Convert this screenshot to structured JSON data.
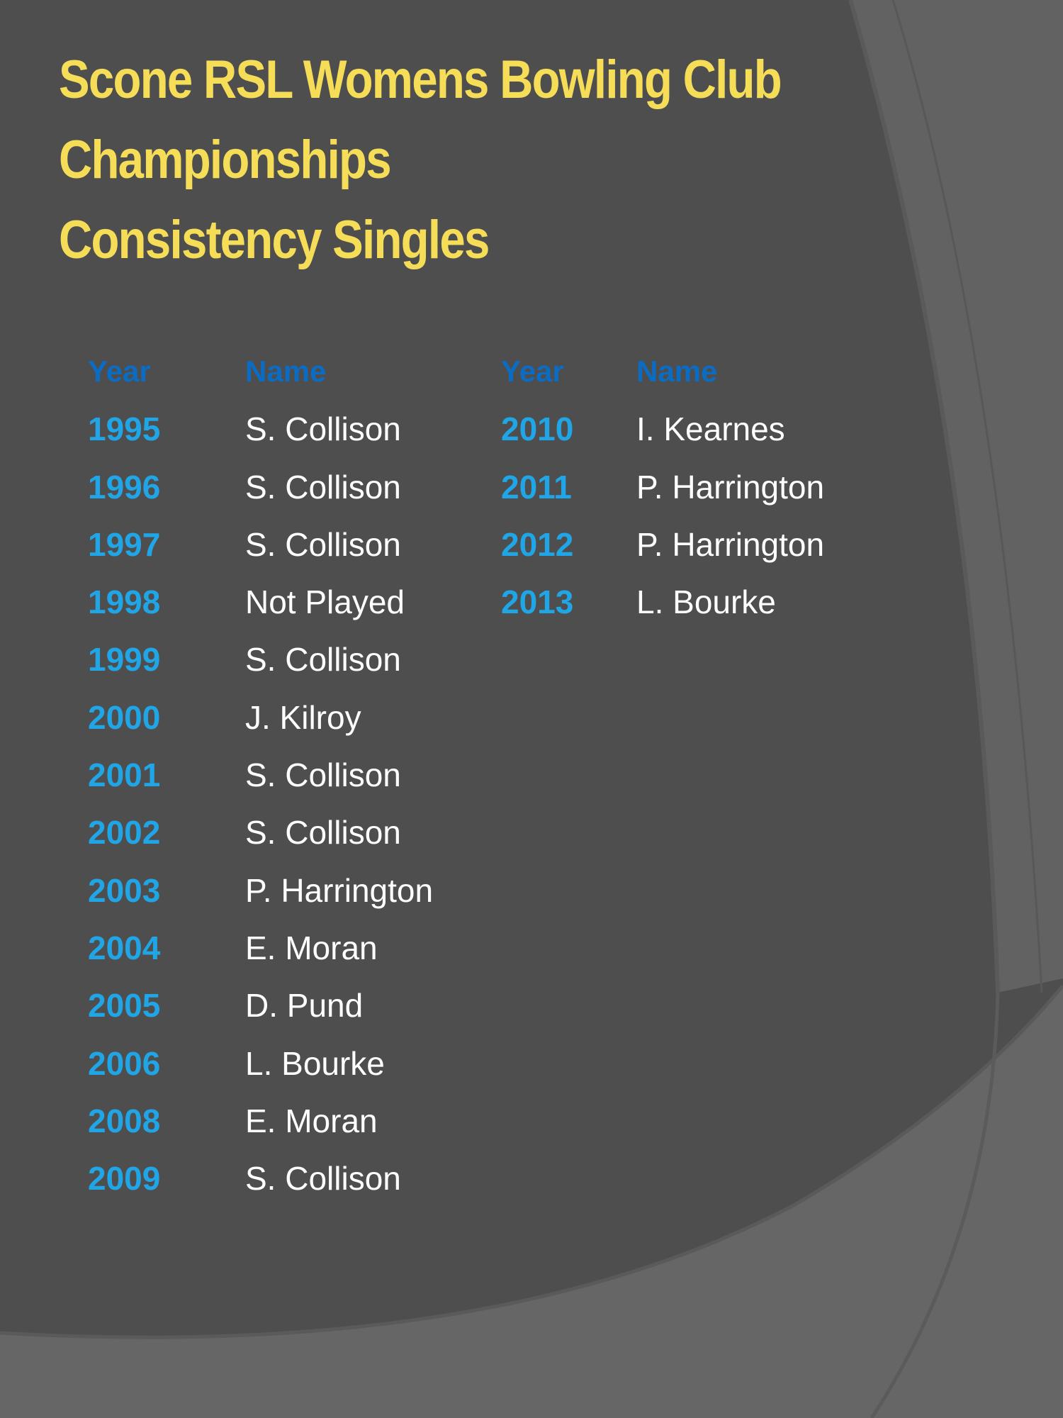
{
  "title": {
    "line1": "Scone RSL Womens Bowling Club",
    "line2": "Championships",
    "line3": "Consistency Singles"
  },
  "colors": {
    "background": "#4e4e4e",
    "title": "#f5dd58",
    "header": "#0b6cc4",
    "year": "#20a6e6",
    "name": "#ffffff"
  },
  "table": {
    "headers": {
      "year": "Year",
      "name": "Name"
    },
    "left_rows": [
      {
        "year": "1995",
        "name": "S. Collison"
      },
      {
        "year": "1996",
        "name": "S. Collison"
      },
      {
        "year": "1997",
        "name": "S. Collison"
      },
      {
        "year": "1998",
        "name": "Not Played"
      },
      {
        "year": "1999",
        "name": "S. Collison"
      },
      {
        "year": "2000",
        "name": "J. Kilroy"
      },
      {
        "year": "2001",
        "name": "S. Collison"
      },
      {
        "year": "2002",
        "name": "S. Collison"
      },
      {
        "year": "2003",
        "name": "P. Harrington"
      },
      {
        "year": "2004",
        "name": "E. Moran"
      },
      {
        "year": "2005",
        "name": "D. Pund"
      },
      {
        "year": "2006",
        "name": "L. Bourke"
      },
      {
        "year": "2008",
        "name": "E. Moran"
      },
      {
        "year": "2009",
        "name": "S. Collison"
      }
    ],
    "right_rows": [
      {
        "year": "2010",
        "name": "I. Kearnes"
      },
      {
        "year": "2011",
        "name": "P. Harrington"
      },
      {
        "year": "2012",
        "name": "P. Harrington"
      },
      {
        "year": "2013",
        "name": "L. Bourke"
      }
    ]
  }
}
